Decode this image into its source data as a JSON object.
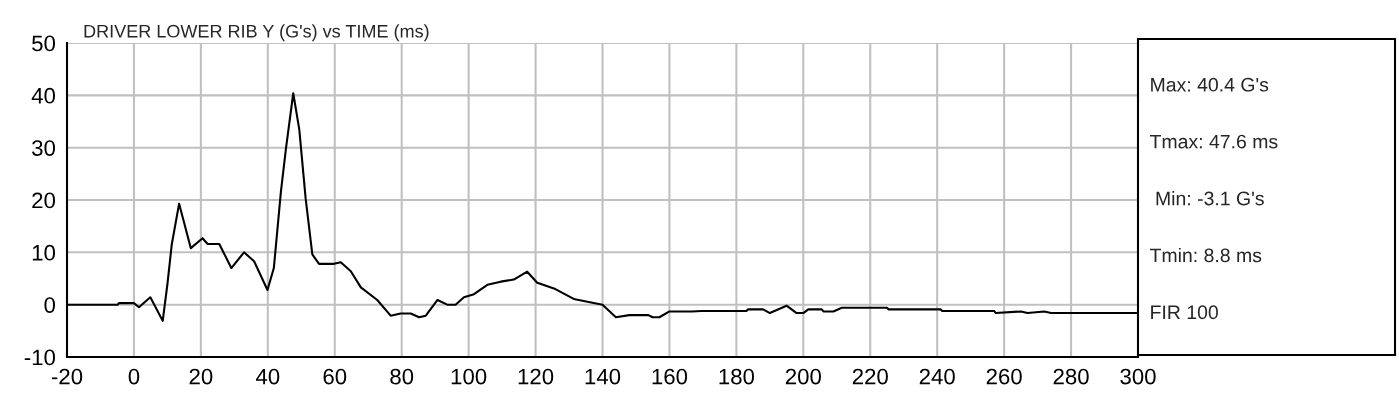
{
  "chart_data": {
    "type": "line",
    "title": "DRIVER LOWER RIB Y (G's) vs TIME (ms)",
    "series": [
      {
        "color": "#000000",
        "x": [
          -20,
          -4.8,
          -4.5,
          0,
          1.5,
          4.9,
          8.6,
          10,
          11.3,
          13.5,
          17,
          20.5,
          22,
          25.5,
          29.1,
          32.9,
          35.9,
          39.9,
          41.8,
          43.9,
          45.4,
          47.6,
          49.4,
          51.3,
          53.3,
          55.3,
          59.8,
          61.8,
          64.8,
          67.8,
          72.7,
          76.7,
          79.7,
          82.7,
          85.2,
          87.2,
          90.7,
          93.6,
          96.1,
          98.6,
          101.6,
          105.6,
          109.6,
          113.5,
          117.5,
          120.5,
          125.5,
          131.4,
          140,
          144,
          148,
          153.7,
          155,
          157,
          160,
          166.7,
          169.6,
          183,
          183.5,
          188,
          190,
          195,
          198,
          200,
          201.5,
          205.5,
          206,
          209,
          211.5,
          225,
          225.5,
          241,
          241.5,
          257,
          257.5,
          265,
          267,
          272,
          274,
          300
        ],
        "values": [
          0,
          0,
          0.3,
          0.3,
          -0.5,
          1.4,
          -3.1,
          3.9,
          11.5,
          19.3,
          10.8,
          12.7,
          11.6,
          11.6,
          7.0,
          10.0,
          8.3,
          2.8,
          7.0,
          21.5,
          29.7,
          40.4,
          33.5,
          20.3,
          9.6,
          7.8,
          7.8,
          8.1,
          6.4,
          3.3,
          0.9,
          -2.1,
          -1.7,
          -1.7,
          -2.4,
          -2.1,
          0.9,
          0,
          0,
          1.4,
          2.0,
          3.8,
          4.4,
          4.8,
          6.3,
          4.2,
          3.1,
          1.1,
          0,
          -2.4,
          -2.0,
          -2.0,
          -2.4,
          -2.4,
          -1.3,
          -1.3,
          -1.2,
          -1.2,
          -0.9,
          -0.9,
          -1.6,
          -0.2,
          -1.6,
          -1.6,
          -0.9,
          -0.9,
          -1.3,
          -1.3,
          -0.6,
          -0.6,
          -0.9,
          -0.9,
          -1.2,
          -1.2,
          -1.6,
          -1.3,
          -1.6,
          -1.3,
          -1.6,
          -1.6
        ]
      }
    ],
    "xlim": [
      -20,
      300
    ],
    "xticks": [
      -20,
      0,
      20,
      40,
      60,
      80,
      100,
      120,
      140,
      160,
      180,
      200,
      220,
      240,
      260,
      280,
      300
    ],
    "ylim": [
      -10,
      50
    ],
    "yticks": [
      -10,
      0,
      10,
      20,
      30,
      40,
      50
    ],
    "grid": true,
    "legend": false,
    "marker": "none",
    "line_style": "solid",
    "annotations": [
      "Max: 40.4 G's",
      "Tmax: 47.6 ms",
      " Min: -3.1 G's",
      "Tmin: 8.8 ms",
      "FIR 100"
    ]
  }
}
